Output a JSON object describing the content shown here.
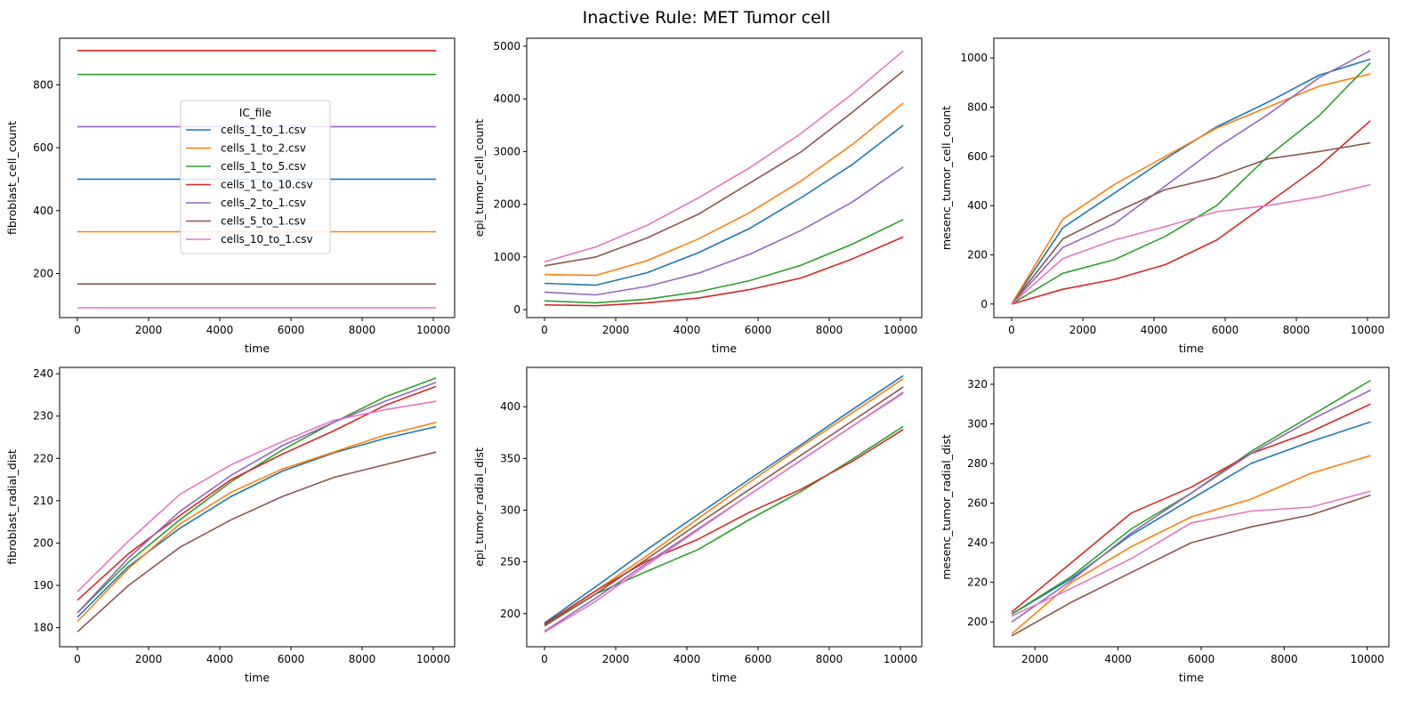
{
  "suptitle": "Inactive Rule: MET Tumor cell",
  "legend": {
    "title": "IC_file",
    "placement": "upper-center of first panel"
  },
  "colors": [
    "#1f77b4",
    "#ff7f0e",
    "#2ca02c",
    "#d62728",
    "#9467bd",
    "#8c564b",
    "#e377c2"
  ],
  "chart_data": [
    {
      "type": "line",
      "xlabel": "time",
      "ylabel": "fibroblast_cell_count",
      "xlim": [
        -500,
        10600
      ],
      "ylim": [
        60,
        948
      ],
      "xticks": [
        0,
        2000,
        4000,
        6000,
        8000,
        10000
      ],
      "yticks": [
        200,
        400,
        600,
        800
      ],
      "series": [
        {
          "name": "cells_1_to_1.csv",
          "x": [
            0,
            1440,
            2880,
            4320,
            5760,
            7200,
            8640,
            10080
          ],
          "y": [
            500,
            500,
            500,
            500,
            500,
            500,
            500,
            500
          ]
        },
        {
          "name": "cells_1_to_2.csv",
          "x": [
            0,
            1440,
            2880,
            4320,
            5760,
            7200,
            8640,
            10080
          ],
          "y": [
            333,
            333,
            333,
            333,
            333,
            333,
            333,
            333
          ]
        },
        {
          "name": "cells_1_to_5.csv",
          "x": [
            0,
            1440,
            2880,
            4320,
            5760,
            7200,
            8640,
            10080
          ],
          "y": [
            833,
            833,
            833,
            833,
            833,
            833,
            833,
            833
          ]
        },
        {
          "name": "cells_1_to_10.csv",
          "x": [
            0,
            1440,
            2880,
            4320,
            5760,
            7200,
            8640,
            10080
          ],
          "y": [
            909,
            909,
            909,
            909,
            909,
            909,
            909,
            909
          ]
        },
        {
          "name": "cells_2_to_1.csv",
          "x": [
            0,
            1440,
            2880,
            4320,
            5760,
            7200,
            8640,
            10080
          ],
          "y": [
            667,
            667,
            667,
            667,
            667,
            667,
            667,
            667
          ]
        },
        {
          "name": "cells_5_to_1.csv",
          "x": [
            0,
            1440,
            2880,
            4320,
            5760,
            7200,
            8640,
            10080
          ],
          "y": [
            167,
            167,
            167,
            167,
            167,
            167,
            167,
            167
          ]
        },
        {
          "name": "cells_10_to_1.csv",
          "x": [
            0,
            1440,
            2880,
            4320,
            5760,
            7200,
            8640,
            10080
          ],
          "y": [
            91,
            91,
            91,
            91,
            91,
            91,
            91,
            91
          ]
        }
      ]
    },
    {
      "type": "line",
      "xlabel": "time",
      "ylabel": "epi_tumor_cell_count",
      "xlim": [
        -500,
        10600
      ],
      "ylim": [
        -150,
        5150
      ],
      "xticks": [
        0,
        2000,
        4000,
        6000,
        8000,
        10000
      ],
      "yticks": [
        0,
        1000,
        2000,
        3000,
        4000,
        5000
      ],
      "series": [
        {
          "name": "cells_1_to_1.csv",
          "x": [
            0,
            1440,
            2880,
            4320,
            5760,
            7200,
            8640,
            10080
          ],
          "y": [
            500,
            465,
            700,
            1080,
            1540,
            2120,
            2750,
            3500
          ]
        },
        {
          "name": "cells_1_to_2.csv",
          "x": [
            0,
            1440,
            2880,
            4320,
            5760,
            7200,
            8640,
            10080
          ],
          "y": [
            667,
            650,
            930,
            1340,
            1840,
            2440,
            3130,
            3920
          ]
        },
        {
          "name": "cells_1_to_5.csv",
          "x": [
            0,
            1440,
            2880,
            4320,
            5760,
            7200,
            8640,
            10080
          ],
          "y": [
            167,
            130,
            200,
            340,
            550,
            840,
            1240,
            1710
          ]
        },
        {
          "name": "cells_1_to_10.csv",
          "x": [
            0,
            1440,
            2880,
            4320,
            5760,
            7200,
            8640,
            10080
          ],
          "y": [
            91,
            75,
            130,
            220,
            380,
            600,
            960,
            1380
          ]
        },
        {
          "name": "cells_2_to_1.csv",
          "x": [
            0,
            1440,
            2880,
            4320,
            5760,
            7200,
            8640,
            10080
          ],
          "y": [
            333,
            280,
            440,
            690,
            1050,
            1500,
            2040,
            2710
          ]
        },
        {
          "name": "cells_5_to_1.csv",
          "x": [
            0,
            1440,
            2880,
            4320,
            5760,
            7200,
            8640,
            10080
          ],
          "y": [
            833,
            1000,
            1360,
            1810,
            2400,
            2990,
            3740,
            4530
          ]
        },
        {
          "name": "cells_10_to_1.csv",
          "x": [
            0,
            1440,
            2880,
            4320,
            5760,
            7200,
            8640,
            10080
          ],
          "y": [
            909,
            1190,
            1600,
            2120,
            2690,
            3340,
            4090,
            4910
          ]
        }
      ]
    },
    {
      "type": "line",
      "xlabel": "time",
      "ylabel": "mesenc_tumor_cell_count",
      "xlim": [
        -500,
        10600
      ],
      "ylim": [
        -55,
        1080
      ],
      "xticks": [
        0,
        2000,
        4000,
        6000,
        8000,
        10000
      ],
      "yticks": [
        0,
        200,
        400,
        600,
        800,
        1000
      ],
      "series": [
        {
          "name": "cells_1_to_1.csv",
          "x": [
            0,
            1440,
            2880,
            4320,
            5760,
            7200,
            8640,
            10080
          ],
          "y": [
            0,
            310,
            450,
            590,
            720,
            820,
            930,
            995
          ]
        },
        {
          "name": "cells_1_to_2.csv",
          "x": [
            0,
            1440,
            2880,
            4320,
            5760,
            7200,
            8640,
            10080
          ],
          "y": [
            0,
            345,
            485,
            600,
            715,
            800,
            885,
            935
          ]
        },
        {
          "name": "cells_1_to_5.csv",
          "x": [
            0,
            1440,
            2880,
            4320,
            5760,
            7200,
            8640,
            10080
          ],
          "y": [
            0,
            125,
            180,
            275,
            400,
            600,
            765,
            980
          ]
        },
        {
          "name": "cells_1_to_10.csv",
          "x": [
            0,
            1440,
            2880,
            4320,
            5760,
            7200,
            8640,
            10080
          ],
          "y": [
            0,
            60,
            100,
            160,
            260,
            410,
            560,
            745
          ]
        },
        {
          "name": "cells_2_to_1.csv",
          "x": [
            0,
            1440,
            2880,
            4320,
            5760,
            7200,
            8640,
            10080
          ],
          "y": [
            0,
            230,
            325,
            480,
            635,
            770,
            920,
            1030
          ]
        },
        {
          "name": "cells_5_to_1.csv",
          "x": [
            0,
            1440,
            2880,
            4320,
            5760,
            7200,
            8640,
            10080
          ],
          "y": [
            0,
            265,
            370,
            465,
            515,
            590,
            620,
            655
          ]
        },
        {
          "name": "cells_10_to_1.csv",
          "x": [
            0,
            1440,
            2880,
            4320,
            5760,
            7200,
            8640,
            10080
          ],
          "y": [
            0,
            185,
            260,
            315,
            375,
            400,
            435,
            485
          ]
        }
      ]
    },
    {
      "type": "line",
      "xlabel": "time",
      "ylabel": "fibroblast_radial_dist",
      "xlim": [
        -500,
        10600
      ],
      "ylim": [
        175.5,
        241.5
      ],
      "xticks": [
        0,
        2000,
        4000,
        6000,
        8000,
        10000
      ],
      "yticks": [
        180,
        190,
        200,
        210,
        220,
        230,
        240
      ],
      "series": [
        {
          "name": "cells_1_to_1.csv",
          "x": [
            0,
            1440,
            2880,
            4320,
            5760,
            7200,
            8640,
            10080
          ],
          "y": [
            182.5,
            194.5,
            203.5,
            211,
            217,
            221.3,
            224.7,
            227.5
          ]
        },
        {
          "name": "cells_1_to_2.csv",
          "x": [
            0,
            1440,
            2880,
            4320,
            5760,
            7200,
            8640,
            10080
          ],
          "y": [
            181.5,
            194,
            204.5,
            212,
            217.5,
            221.5,
            225.5,
            228.5
          ]
        },
        {
          "name": "cells_1_to_5.csv",
          "x": [
            0,
            1440,
            2880,
            4320,
            5760,
            7200,
            8640,
            10080
          ],
          "y": [
            183.5,
            195.5,
            205.5,
            214.5,
            222,
            228.5,
            234.5,
            239
          ]
        },
        {
          "name": "cells_1_to_10.csv",
          "x": [
            0,
            1440,
            2880,
            4320,
            5760,
            7200,
            8640,
            10080
          ],
          "y": [
            186.5,
            197.5,
            206.5,
            215,
            221,
            226.5,
            232.5,
            237
          ]
        },
        {
          "name": "cells_2_to_1.csv",
          "x": [
            0,
            1440,
            2880,
            4320,
            5760,
            7200,
            8640,
            10080
          ],
          "y": [
            183.5,
            196.5,
            207.5,
            216,
            223,
            228.5,
            233.5,
            238
          ]
        },
        {
          "name": "cells_5_to_1.csv",
          "x": [
            0,
            1440,
            2880,
            4320,
            5760,
            7200,
            8640,
            10080
          ],
          "y": [
            179,
            190,
            199,
            205.5,
            211,
            215.5,
            218.5,
            221.5
          ]
        },
        {
          "name": "cells_10_to_1.csv",
          "x": [
            0,
            1440,
            2880,
            4320,
            5760,
            7200,
            8640,
            10080
          ],
          "y": [
            188.5,
            200.5,
            211.5,
            218.5,
            224,
            229,
            231.5,
            233.5
          ]
        }
      ]
    },
    {
      "type": "line",
      "xlabel": "time",
      "ylabel": "epi_tumor_radial_dist",
      "xlim": [
        -500,
        10600
      ],
      "ylim": [
        168,
        438
      ],
      "xticks": [
        0,
        2000,
        4000,
        6000,
        8000,
        10000
      ],
      "yticks": [
        200,
        250,
        300,
        350,
        400
      ],
      "series": [
        {
          "name": "cells_1_to_1.csv",
          "x": [
            0,
            1440,
            2880,
            4320,
            5760,
            7200,
            8640,
            10080
          ],
          "y": [
            191,
            226,
            262,
            296,
            330,
            363,
            397,
            430
          ]
        },
        {
          "name": "cells_1_to_2.csv",
          "x": [
            0,
            1440,
            2880,
            4320,
            5760,
            7200,
            8640,
            10080
          ],
          "y": [
            189,
            222,
            256,
            292,
            327,
            361,
            394,
            427
          ]
        },
        {
          "name": "cells_1_to_5.csv",
          "x": [
            0,
            1440,
            2880,
            4320,
            5760,
            7200,
            8640,
            10080
          ],
          "y": [
            189,
            219,
            241,
            262,
            291,
            318,
            349,
            381
          ]
        },
        {
          "name": "cells_1_to_10.csv",
          "x": [
            0,
            1440,
            2880,
            4320,
            5760,
            7200,
            8640,
            10080
          ],
          "y": [
            190,
            222,
            251,
            272,
            298,
            320,
            347,
            378
          ]
        },
        {
          "name": "cells_2_to_1.csv",
          "x": [
            0,
            1440,
            2880,
            4320,
            5760,
            7200,
            8640,
            10080
          ],
          "y": [
            183,
            215,
            249,
            282,
            315,
            348,
            381,
            414
          ]
        },
        {
          "name": "cells_5_to_1.csv",
          "x": [
            0,
            1440,
            2880,
            4320,
            5760,
            7200,
            8640,
            10080
          ],
          "y": [
            188,
            219,
            253,
            287,
            320,
            353,
            386,
            419
          ]
        },
        {
          "name": "cells_10_to_1.csv",
          "x": [
            0,
            1440,
            2880,
            4320,
            5760,
            7200,
            8640,
            10080
          ],
          "y": [
            182,
            212,
            247,
            281,
            315,
            348,
            381,
            413
          ]
        }
      ]
    },
    {
      "type": "line",
      "xlabel": "time",
      "ylabel": "mesenc_tumor_radial_dist",
      "xlim": [
        1010,
        10520
      ],
      "ylim": [
        187.5,
        328.5
      ],
      "xticks": [
        2000,
        4000,
        6000,
        8000,
        10000
      ],
      "yticks": [
        200,
        220,
        240,
        260,
        280,
        300,
        320
      ],
      "series": [
        {
          "name": "cells_1_to_1.csv",
          "x": [
            1440,
            2880,
            4320,
            5760,
            7200,
            8640,
            10080
          ],
          "y": [
            204,
            222,
            244,
            262,
            280,
            291,
            301
          ]
        },
        {
          "name": "cells_1_to_2.csv",
          "x": [
            1440,
            2880,
            4320,
            5760,
            7200,
            8640,
            10080
          ],
          "y": [
            194,
            220,
            238,
            253,
            262,
            275,
            284
          ]
        },
        {
          "name": "cells_1_to_5.csv",
          "x": [
            1440,
            2880,
            4320,
            5760,
            7200,
            8640,
            10080
          ],
          "y": [
            204,
            223,
            247,
            265,
            286,
            304,
            322
          ]
        },
        {
          "name": "cells_1_to_10.csv",
          "x": [
            1440,
            2880,
            4320,
            5760,
            7200,
            8640,
            10080
          ],
          "y": [
            205,
            230,
            255,
            268,
            285,
            296,
            310
          ]
        },
        {
          "name": "cells_2_to_1.csv",
          "x": [
            1440,
            2880,
            4320,
            5760,
            7200,
            8640,
            10080
          ],
          "y": [
            200,
            221,
            245,
            265,
            285,
            302,
            317
          ]
        },
        {
          "name": "cells_5_to_1.csv",
          "x": [
            1440,
            2880,
            4320,
            5760,
            7200,
            8640,
            10080
          ],
          "y": [
            193,
            210,
            225,
            240,
            248,
            254,
            264
          ]
        },
        {
          "name": "cells_10_to_1.csv",
          "x": [
            1440,
            2880,
            4320,
            5760,
            7200,
            8640,
            10080
          ],
          "y": [
            203,
            217,
            232,
            250,
            256,
            258,
            266
          ]
        }
      ]
    }
  ]
}
